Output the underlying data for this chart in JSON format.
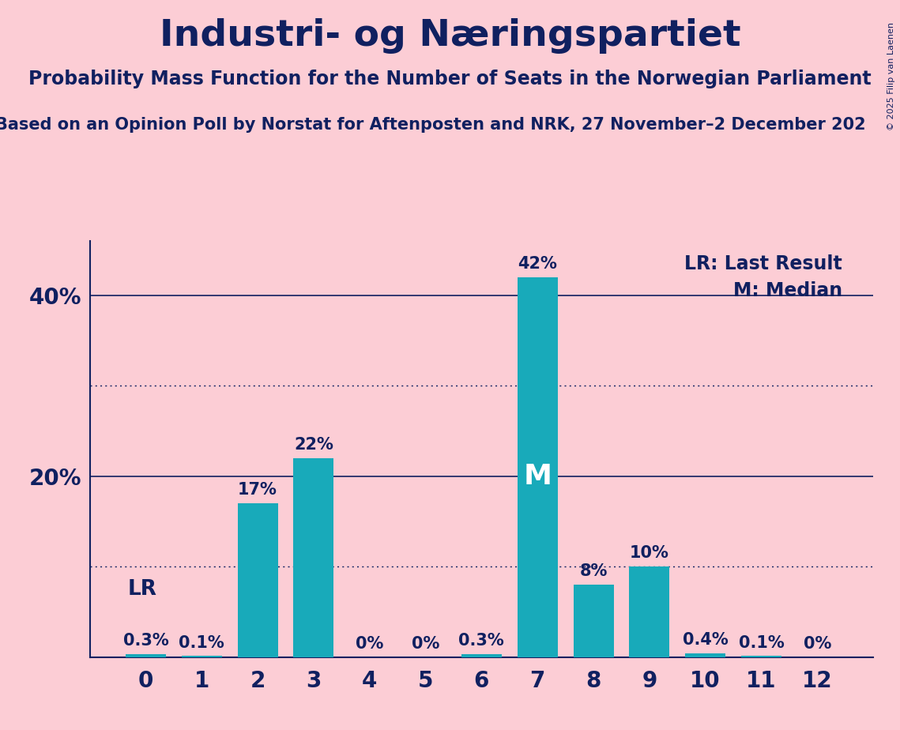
{
  "title": "Industri- og Næringspartiet",
  "subtitle": "Probability Mass Function for the Number of Seats in the Norwegian Parliament",
  "source": "Based on an Opinion Poll by Norstat for Aftenposten and NRK, 27 November–2 December 202",
  "copyright": "© 2025 Filip van Laenen",
  "categories": [
    0,
    1,
    2,
    3,
    4,
    5,
    6,
    7,
    8,
    9,
    10,
    11,
    12
  ],
  "values": [
    0.3,
    0.1,
    17.0,
    22.0,
    0.0,
    0.0,
    0.3,
    42.0,
    8.0,
    10.0,
    0.4,
    0.1,
    0.0
  ],
  "bar_color": "#18AABA",
  "background_color": "#FCCDD5",
  "title_color": "#102060",
  "label_color": "#102060",
  "axis_color": "#102060",
  "ylim": [
    0,
    46
  ],
  "solid_gridlines": [
    20,
    40
  ],
  "dotted_gridlines": [
    10,
    30
  ],
  "lr_index": 0,
  "median_index": 7,
  "legend_lr": "LR: Last Result",
  "legend_m": "M: Median",
  "figsize": [
    11.39,
    9.24
  ],
  "dpi": 100
}
